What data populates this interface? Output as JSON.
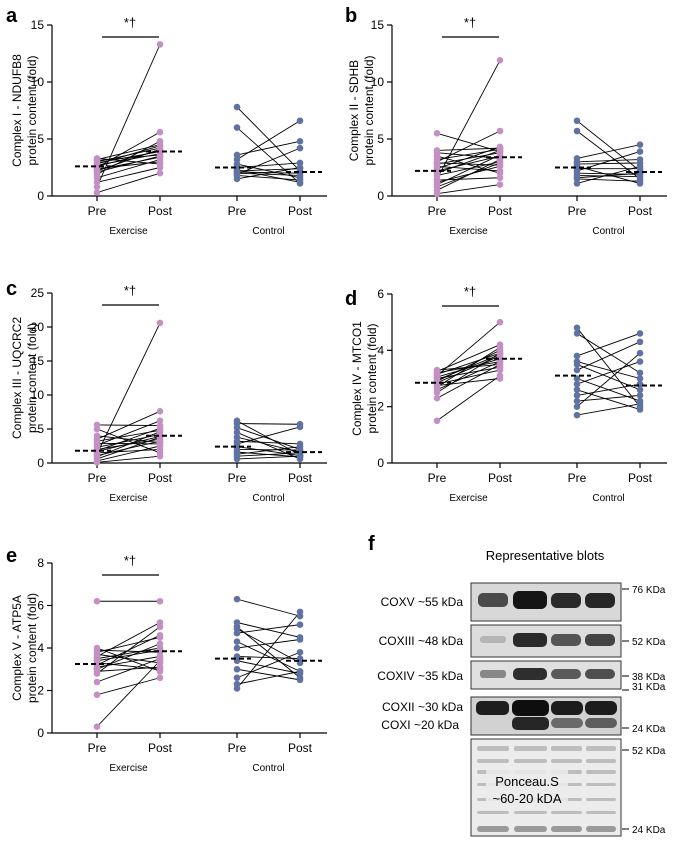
{
  "colors": {
    "exercise": "#c48fc2",
    "control": "#5f72a1",
    "line": "#000000",
    "mean": "#000000"
  },
  "chart_data": [
    {
      "type": "scatter",
      "panel": "a",
      "ylabel_lines": [
        "Complex I - NDUFB8",
        "protein content (fold)"
      ],
      "ylim": [
        0,
        15
      ],
      "yticks": [
        0,
        5,
        10,
        15
      ],
      "group_labels": [
        "Exercise",
        "Control"
      ],
      "category_labels": [
        "Pre",
        "Post",
        "Pre",
        "Post"
      ],
      "significance": "*†",
      "means": {
        "exercise": [
          2.6,
          3.9
        ],
        "control": [
          2.5,
          2.1
        ]
      },
      "series": [
        {
          "name": "Exercise",
          "pairs": [
            [
              0.3,
              2.0
            ],
            [
              0.8,
              13.3
            ],
            [
              1.2,
              2.5
            ],
            [
              1.6,
              3.2
            ],
            [
              1.9,
              4.8
            ],
            [
              2.1,
              3.5
            ],
            [
              2.2,
              4.1
            ],
            [
              2.4,
              3.0
            ],
            [
              2.5,
              5.6
            ],
            [
              2.6,
              4.0
            ],
            [
              2.7,
              3.7
            ],
            [
              2.8,
              4.4
            ],
            [
              2.9,
              3.9
            ],
            [
              3.0,
              4.2
            ],
            [
              3.1,
              3.6
            ],
            [
              3.2,
              4.5
            ],
            [
              3.3,
              2.8
            ],
            [
              2.3,
              3.4
            ]
          ]
        },
        {
          "name": "Control",
          "pairs": [
            [
              7.8,
              2.2
            ],
            [
              6.0,
              1.1
            ],
            [
              3.6,
              4.8
            ],
            [
              3.2,
              6.6
            ],
            [
              2.8,
              1.6
            ],
            [
              2.5,
              2.9
            ],
            [
              2.3,
              1.2
            ],
            [
              2.2,
              2.4
            ],
            [
              2.1,
              2.0
            ],
            [
              2.0,
              1.8
            ],
            [
              1.9,
              4.2
            ],
            [
              1.8,
              1.4
            ],
            [
              1.5,
              2.5
            ]
          ]
        }
      ]
    },
    {
      "type": "scatter",
      "panel": "b",
      "ylabel_lines": [
        "Complex II - SDHB",
        "protein content (fold)"
      ],
      "ylim": [
        0,
        15
      ],
      "yticks": [
        0,
        5,
        10,
        15
      ],
      "group_labels": [
        "Exercise",
        "Control"
      ],
      "category_labels": [
        "Pre",
        "Post",
        "Pre",
        "Post"
      ],
      "significance": "*†",
      "means": {
        "exercise": [
          2.2,
          3.4
        ],
        "control": [
          2.5,
          2.1
        ]
      },
      "series": [
        {
          "name": "Exercise",
          "pairs": [
            [
              0.2,
              1.0
            ],
            [
              0.5,
              3.2
            ],
            [
              0.8,
              2.9
            ],
            [
              1.0,
              3.6
            ],
            [
              1.2,
              2.6
            ],
            [
              1.5,
              11.9
            ],
            [
              1.8,
              3.0
            ],
            [
              2.0,
              4.0
            ],
            [
              2.2,
              3.5
            ],
            [
              2.4,
              4.3
            ],
            [
              2.6,
              2.2
            ],
            [
              2.8,
              3.8
            ],
            [
              3.0,
              5.7
            ],
            [
              3.2,
              4.1
            ],
            [
              3.5,
              2.0
            ],
            [
              3.8,
              3.3
            ],
            [
              4.0,
              4.2
            ],
            [
              5.5,
              3.9
            ],
            [
              1.4,
              1.6
            ],
            [
              2.9,
              2.7
            ]
          ]
        },
        {
          "name": "Control",
          "pairs": [
            [
              6.6,
              2.2
            ],
            [
              5.7,
              1.5
            ],
            [
              3.3,
              4.5
            ],
            [
              3.0,
              3.2
            ],
            [
              2.8,
              2.9
            ],
            [
              2.6,
              1.1
            ],
            [
              2.4,
              2.4
            ],
            [
              2.2,
              3.9
            ],
            [
              2.0,
              1.9
            ],
            [
              1.8,
              1.7
            ],
            [
              1.6,
              2.0
            ],
            [
              1.5,
              1.3
            ],
            [
              1.1,
              2.6
            ]
          ]
        }
      ]
    },
    {
      "type": "scatter",
      "panel": "c",
      "ylabel_lines": [
        "Complex III - UQCRC2",
        "protein content (fold)"
      ],
      "ylim": [
        0,
        25
      ],
      "yticks": [
        0,
        5,
        10,
        15,
        20,
        25
      ],
      "group_labels": [
        "Exercise",
        "Control"
      ],
      "category_labels": [
        "Pre",
        "Post",
        "Pre",
        "Post"
      ],
      "significance": "*†",
      "means": {
        "exercise": [
          1.8,
          4.0
        ],
        "control": [
          2.4,
          1.6
        ]
      },
      "series": [
        {
          "name": "Exercise",
          "pairs": [
            [
              0.1,
              1.0
            ],
            [
              0.3,
              2.5
            ],
            [
              0.6,
              3.8
            ],
            [
              0.9,
              4.6
            ],
            [
              1.1,
              3.2
            ],
            [
              1.3,
              20.6
            ],
            [
              1.5,
              2.0
            ],
            [
              1.8,
              5.1
            ],
            [
              2.0,
              3.5
            ],
            [
              2.3,
              4.2
            ],
            [
              2.6,
              6.2
            ],
            [
              2.9,
              2.8
            ],
            [
              3.2,
              4.8
            ],
            [
              3.5,
              7.6
            ],
            [
              4.0,
              3.0
            ],
            [
              5.0,
              1.5
            ],
            [
              5.6,
              5.5
            ],
            [
              1.7,
              3.9
            ]
          ]
        },
        {
          "name": "Control",
          "pairs": [
            [
              6.2,
              1.2
            ],
            [
              5.8,
              5.7
            ],
            [
              5.2,
              2.0
            ],
            [
              4.5,
              0.6
            ],
            [
              3.8,
              1.6
            ],
            [
              3.2,
              2.8
            ],
            [
              2.8,
              5.3
            ],
            [
              2.4,
              1.1
            ],
            [
              2.0,
              1.9
            ],
            [
              1.6,
              0.9
            ],
            [
              1.3,
              2.4
            ],
            [
              1.0,
              1.5
            ],
            [
              0.6,
              1.0
            ]
          ]
        }
      ]
    },
    {
      "type": "scatter",
      "panel": "d",
      "ylabel_lines": [
        "Complex IV - MTCO1",
        "protein content (fold)"
      ],
      "ylim": [
        0,
        6
      ],
      "yticks": [
        0,
        2,
        4,
        6
      ],
      "group_labels": [
        "Exercise",
        "Control"
      ],
      "category_labels": [
        "Pre",
        "Post",
        "Pre",
        "Post"
      ],
      "significance": "*†",
      "means": {
        "exercise": [
          2.85,
          3.7
        ],
        "control": [
          3.1,
          2.75
        ]
      },
      "series": [
        {
          "name": "Exercise",
          "pairs": [
            [
              1.5,
              3.1
            ],
            [
              2.3,
              3.5
            ],
            [
              2.5,
              3.9
            ],
            [
              2.6,
              3.6
            ],
            [
              2.7,
              4.1
            ],
            [
              2.8,
              3.3
            ],
            [
              2.85,
              3.8
            ],
            [
              2.9,
              4.0
            ],
            [
              3.0,
              3.4
            ],
            [
              3.05,
              3.7
            ],
            [
              3.1,
              5.0
            ],
            [
              3.15,
              3.9
            ],
            [
              3.2,
              3.6
            ],
            [
              3.25,
              4.2
            ],
            [
              3.3,
              3.5
            ],
            [
              2.75,
              3.0
            ],
            [
              2.95,
              3.85
            ]
          ]
        },
        {
          "name": "Control",
          "pairs": [
            [
              4.8,
              2.0
            ],
            [
              4.6,
              3.2
            ],
            [
              3.8,
              4.6
            ],
            [
              3.5,
              2.6
            ],
            [
              3.3,
              4.3
            ],
            [
              3.0,
              2.2
            ],
            [
              2.8,
              3.6
            ],
            [
              2.6,
              1.9
            ],
            [
              2.4,
              2.8
            ],
            [
              2.2,
              2.4
            ],
            [
              2.0,
              3.9
            ],
            [
              1.7,
              2.1
            ],
            [
              3.6,
              3.0
            ]
          ]
        }
      ]
    },
    {
      "type": "scatter",
      "panel": "e",
      "ylabel_lines": [
        "Complex V - ATP5A",
        "protein content (fold)"
      ],
      "ylim": [
        0,
        8
      ],
      "yticks": [
        0,
        2,
        4,
        6,
        8
      ],
      "group_labels": [
        "Exercise",
        "Control"
      ],
      "category_labels": [
        "Pre",
        "Post",
        "Pre",
        "Post"
      ],
      "significance": "*†",
      "means": {
        "exercise": [
          3.25,
          3.85
        ],
        "control": [
          3.5,
          3.4
        ]
      },
      "series": [
        {
          "name": "Exercise",
          "pairs": [
            [
              0.3,
              3.4
            ],
            [
              1.8,
              2.6
            ],
            [
              2.8,
              5.0
            ],
            [
              2.9,
              3.1
            ],
            [
              3.0,
              4.2
            ],
            [
              3.1,
              3.6
            ],
            [
              3.2,
              4.6
            ],
            [
              3.3,
              3.0
            ],
            [
              3.4,
              3.9
            ],
            [
              3.5,
              4.0
            ],
            [
              3.6,
              5.2
            ],
            [
              3.7,
              3.3
            ],
            [
              3.8,
              4.5
            ],
            [
              3.9,
              3.8
            ],
            [
              4.0,
              2.9
            ],
            [
              6.2,
              6.2
            ],
            [
              2.4,
              3.5
            ]
          ]
        },
        {
          "name": "Control",
          "pairs": [
            [
              6.3,
              5.5
            ],
            [
              5.2,
              4.5
            ],
            [
              5.0,
              2.6
            ],
            [
              4.7,
              5.1
            ],
            [
              4.3,
              2.9
            ],
            [
              4.0,
              4.4
            ],
            [
              3.6,
              3.5
            ],
            [
              3.4,
              2.8
            ],
            [
              3.0,
              2.5
            ],
            [
              2.6,
              3.8
            ],
            [
              2.3,
              2.9
            ],
            [
              2.1,
              5.7
            ],
            [
              4.9,
              3.3
            ]
          ]
        }
      ]
    }
  ],
  "blots": {
    "title": "Representative blots",
    "panel_letter": "f",
    "rows": [
      {
        "label": "COXV ~55 kDa",
        "kda": "76 KDa"
      },
      {
        "label": "COXIII ~48 kDa",
        "kda": "52 KDa"
      },
      {
        "label": "COXIV ~35 kDa",
        "kda": "38 KDa"
      },
      {
        "label_1": "COXII ~30 kDa",
        "label_2": "COXI ~20 kDa",
        "kda_top": "31 KDa",
        "kda": "24 KDa"
      },
      {
        "label_1": "Ponceau.S",
        "label_2": "~60-20 kDA",
        "kda_top": "52 KDa",
        "kda": "24 KDa"
      }
    ]
  }
}
